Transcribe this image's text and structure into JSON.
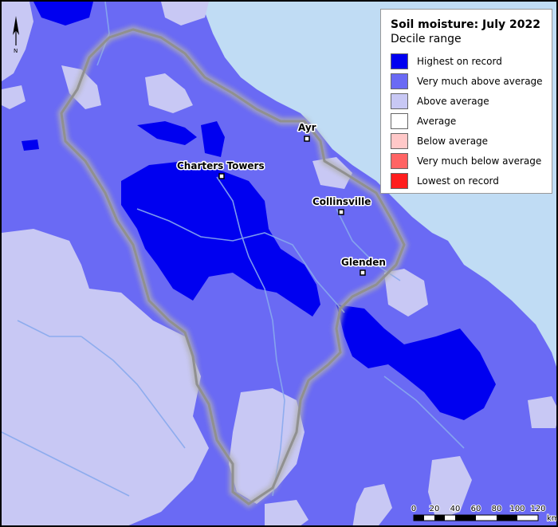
{
  "legend": {
    "title": "Soil moisture: July 2022",
    "subtitle": "Decile range",
    "items": [
      {
        "label": "Highest on record",
        "color": "#0000f0"
      },
      {
        "label": "Very much above average",
        "color": "#6a6af4"
      },
      {
        "label": "Above average",
        "color": "#c8c8f4"
      },
      {
        "label": "Average",
        "color": "#ffffff"
      },
      {
        "label": "Below average",
        "color": "#ffc8c8"
      },
      {
        "label": "Very much below average",
        "color": "#ff6464"
      },
      {
        "label": "Lowest on record",
        "color": "#ff1e1e"
      }
    ]
  },
  "towns": [
    {
      "name": "Ayr"
    },
    {
      "name": "Charters Towers"
    },
    {
      "name": "Collinsville"
    },
    {
      "name": "Glenden"
    }
  ],
  "north_arrow": {
    "label": "N"
  },
  "scale_bar": {
    "ticks": [
      "0",
      "20",
      "40",
      "60",
      "80",
      "100",
      "120"
    ],
    "unit": "km"
  },
  "colors": {
    "ocean": "#c0dcf4",
    "catchment_border": "#909090",
    "rivers": "#88aaee"
  }
}
